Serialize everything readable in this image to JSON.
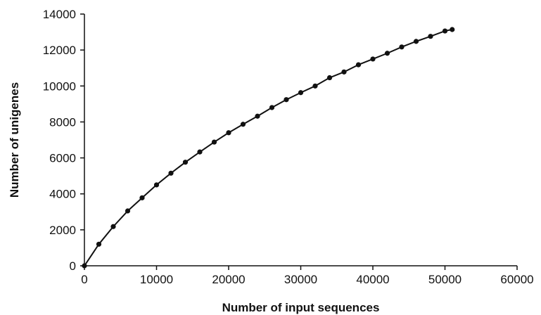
{
  "chart_data": {
    "type": "line",
    "title": "",
    "xlabel": "Number of input sequences",
    "ylabel": "Number of unigenes",
    "xlim": [
      0,
      60000
    ],
    "ylim": [
      0,
      14000
    ],
    "x_ticks": [
      0,
      10000,
      20000,
      30000,
      40000,
      50000,
      60000
    ],
    "y_ticks": [
      0,
      2000,
      4000,
      6000,
      8000,
      10000,
      12000,
      14000
    ],
    "grid": false,
    "legend": "none",
    "series": [
      {
        "x": [
          0,
          2000,
          4000,
          6000,
          8000,
          10000,
          12000,
          14000,
          16000,
          18000,
          20000,
          22000,
          24000,
          26000,
          28000,
          30000,
          32000,
          34000,
          36000,
          38000,
          40000,
          42000,
          44000,
          46000,
          48000,
          50000,
          51000
        ],
        "y": [
          0,
          1200,
          2180,
          3050,
          3780,
          4500,
          5150,
          5760,
          6330,
          6880,
          7400,
          7870,
          8320,
          8800,
          9240,
          9630,
          10000,
          10460,
          10780,
          11180,
          11500,
          11820,
          12170,
          12480,
          12760,
          13060,
          13140
        ],
        "color": "#111111"
      }
    ]
  }
}
